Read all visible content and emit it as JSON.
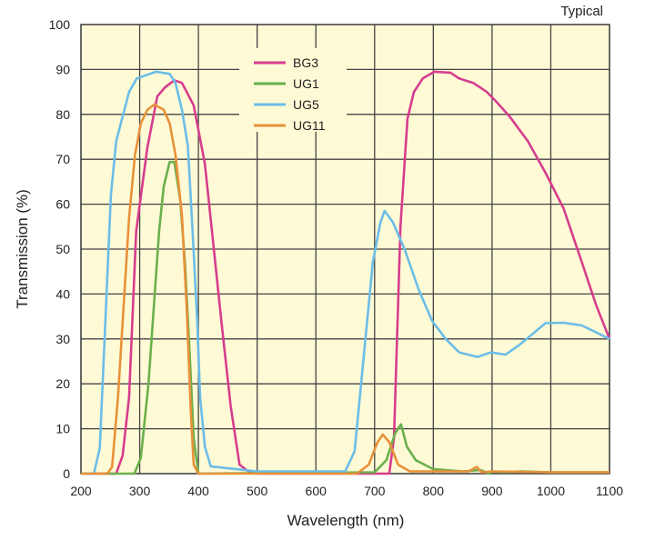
{
  "chart_data": {
    "type": "line",
    "title": "",
    "annotation": "Typical",
    "xlabel": "Wavelength (nm)",
    "ylabel": "Transmission (%)",
    "xlim": [
      200,
      1100
    ],
    "ylim": [
      0,
      100
    ],
    "xticks": [
      200,
      300,
      400,
      500,
      600,
      700,
      800,
      900,
      1000,
      1100
    ],
    "yticks": [
      0,
      10,
      20,
      30,
      40,
      50,
      60,
      70,
      80,
      90,
      100
    ],
    "grid": true,
    "legend_position": "top-center",
    "background": "#fffad6",
    "series": [
      {
        "name": "BG3",
        "color": "#d63d8e",
        "x": [
          200,
          260,
          271,
          282,
          294,
          313,
          330,
          343,
          359,
          372,
          392,
          411,
          423,
          439,
          455,
          470,
          485,
          500,
          700,
          725,
          733,
          744,
          756,
          767,
          782,
          802,
          829,
          844,
          868,
          891,
          906,
          930,
          961,
          991,
          1022,
          1053,
          1077,
          1100
        ],
        "y": [
          0,
          0,
          4,
          17,
          54,
          72.5,
          84,
          86,
          87.6,
          87,
          82,
          69,
          54,
          34,
          15,
          2,
          0.5,
          0,
          0,
          0,
          8,
          55,
          79,
          85,
          88,
          89.5,
          89.3,
          88,
          87,
          85,
          83,
          79.5,
          74,
          67,
          59,
          47,
          37.6,
          30
        ]
      },
      {
        "name": "UG1",
        "color": "#6ab04c",
        "x": [
          200,
          291,
          302,
          315,
          333,
          341,
          351,
          359,
          369,
          377,
          385,
          392,
          400,
          700,
          720,
          735,
          745,
          755,
          770,
          800,
          850,
          880,
          895,
          900,
          920,
          950,
          1000,
          1100
        ],
        "y": [
          0,
          0,
          3.5,
          20,
          54,
          64,
          69.4,
          69.4,
          61,
          47,
          27,
          8,
          0,
          0.3,
          3,
          9,
          11,
          6,
          3,
          1,
          0.5,
          0.8,
          0,
          0.5,
          0.3,
          0.5,
          0.3,
          0.3
        ]
      },
      {
        "name": "UG5",
        "color": "#6bbde8",
        "x": [
          200,
          222,
          232,
          251,
          260,
          282,
          295,
          328,
          351,
          361,
          372,
          382,
          390,
          398,
          403,
          411,
          421,
          500,
          650,
          666,
          697,
          710,
          717,
          731,
          751,
          775,
          798,
          821,
          844,
          875,
          898,
          923,
          945,
          968,
          991,
          1022,
          1053,
          1100
        ],
        "y": [
          0,
          0,
          5.7,
          62,
          74,
          85,
          88,
          89.5,
          89,
          87,
          81,
          73,
          54,
          34,
          17,
          6,
          1.6,
          0.5,
          0.5,
          5,
          47,
          56,
          58.5,
          56,
          50,
          41,
          34,
          30,
          27,
          26,
          27,
          26.5,
          28.5,
          31,
          33.5,
          33.6,
          33,
          30
        ]
      },
      {
        "name": "UG11",
        "color": "#e8913a",
        "x": [
          200,
          245,
          253,
          263,
          282,
          292,
          302,
          313,
          325,
          341,
          351,
          361,
          372,
          380,
          387,
          392,
          400,
          670,
          690,
          705,
          714,
          725,
          740,
          760,
          860,
          874,
          882,
          900,
          1000,
          1100
        ],
        "y": [
          0,
          0,
          1.5,
          17,
          57,
          71,
          78,
          81,
          82.2,
          81,
          78,
          71,
          57.5,
          37,
          14,
          2,
          0,
          0,
          2,
          7,
          8.7,
          7,
          2,
          0.5,
          0.5,
          1.5,
          0.3,
          0.5,
          0.3,
          0.3
        ]
      }
    ]
  }
}
